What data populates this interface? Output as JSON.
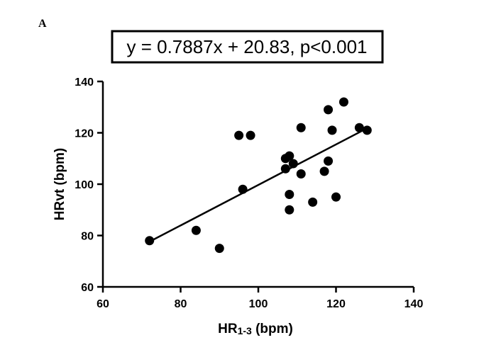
{
  "panel_label": "A",
  "chart_data": {
    "type": "scatter",
    "title": "y = 0.7887x + 20.83, p<0.001",
    "xlabel": "HR1-3 (bpm)",
    "xlabel_main": "HR",
    "xlabel_sub": "1-3",
    "xlabel_unit": " (bpm)",
    "ylabel": "HRvt (bpm)",
    "xlim": [
      60,
      140
    ],
    "ylim": [
      60,
      140
    ],
    "xticks": [
      60,
      80,
      100,
      120,
      140
    ],
    "yticks": [
      60,
      80,
      100,
      120,
      140
    ],
    "xtick_labels": [
      "60",
      "80",
      "100",
      "120",
      "140"
    ],
    "ytick_labels": [
      "60",
      "80",
      "100",
      "120",
      "140"
    ],
    "grid": false,
    "point_color": "#000000",
    "points": [
      {
        "x": 72,
        "y": 78
      },
      {
        "x": 84,
        "y": 82
      },
      {
        "x": 90,
        "y": 75
      },
      {
        "x": 95,
        "y": 119
      },
      {
        "x": 96,
        "y": 98
      },
      {
        "x": 98,
        "y": 119
      },
      {
        "x": 107,
        "y": 106
      },
      {
        "x": 107,
        "y": 110
      },
      {
        "x": 108,
        "y": 111
      },
      {
        "x": 108,
        "y": 96
      },
      {
        "x": 108,
        "y": 90
      },
      {
        "x": 109,
        "y": 108
      },
      {
        "x": 111,
        "y": 122
      },
      {
        "x": 111,
        "y": 104
      },
      {
        "x": 114,
        "y": 93
      },
      {
        "x": 117,
        "y": 105
      },
      {
        "x": 118,
        "y": 129
      },
      {
        "x": 118,
        "y": 109
      },
      {
        "x": 119,
        "y": 121
      },
      {
        "x": 120,
        "y": 95
      },
      {
        "x": 122,
        "y": 132
      },
      {
        "x": 126,
        "y": 122
      },
      {
        "x": 128,
        "y": 121
      }
    ],
    "regression": {
      "slope": 0.7887,
      "intercept": 20.83,
      "x_range": [
        72,
        128
      ]
    }
  }
}
